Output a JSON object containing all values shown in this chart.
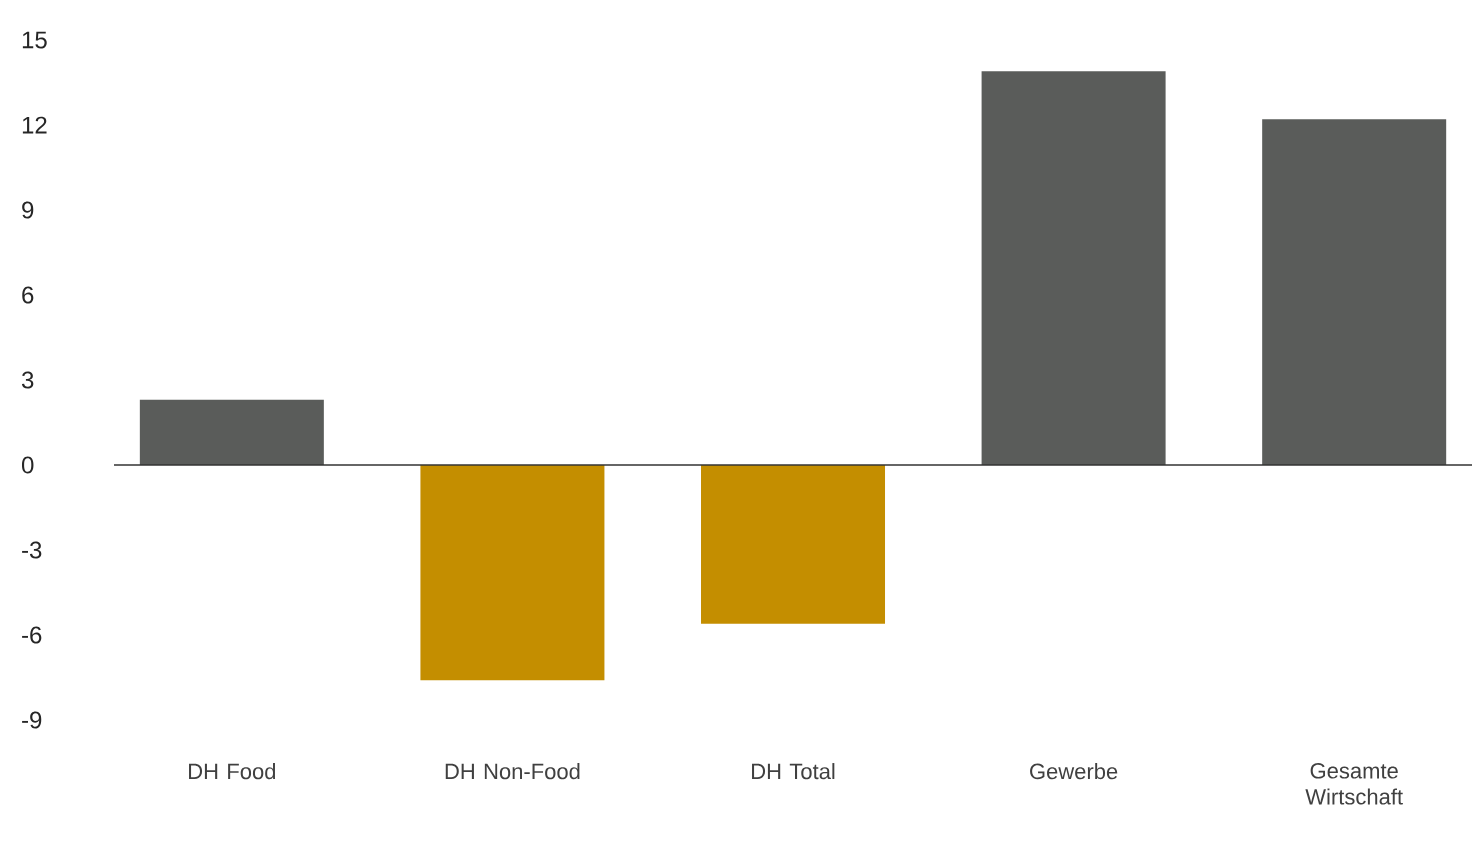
{
  "chart_data": {
    "type": "bar",
    "categories": [
      "DH Food",
      "DH Non-Food",
      "DH Total",
      "Gewerbe",
      "Gesamte Wirtschaft"
    ],
    "values": [
      2.3,
      -7.6,
      -5.6,
      13.9,
      12.2
    ],
    "colors": [
      "#5a5c5a",
      "#c48e00",
      "#c48e00",
      "#5a5c5a",
      "#5a5c5a"
    ],
    "ylim": [
      -9,
      15
    ],
    "yticks": [
      -9,
      -6,
      -3,
      0,
      3,
      6,
      9,
      12,
      15
    ]
  }
}
